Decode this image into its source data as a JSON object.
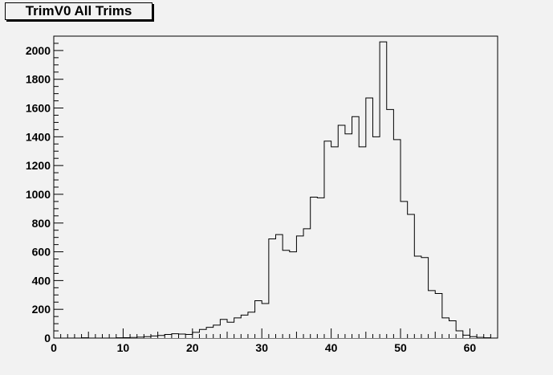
{
  "title": "TrimV0 All Trims",
  "chart_data": {
    "type": "bar",
    "title": "TrimV0 All Trims",
    "xlabel": "",
    "ylabel": "",
    "xlim": [
      0,
      64
    ],
    "ylim": [
      0,
      2100
    ],
    "x_ticks": [
      0,
      10,
      20,
      30,
      40,
      50,
      60
    ],
    "y_ticks": [
      0,
      200,
      400,
      600,
      800,
      1000,
      1200,
      1400,
      1600,
      1800,
      2000
    ],
    "bin_width": 1,
    "bins_start": [
      0,
      1,
      2,
      3,
      4,
      5,
      6,
      7,
      8,
      9,
      10,
      11,
      12,
      13,
      14,
      15,
      16,
      17,
      18,
      19,
      20,
      21,
      22,
      23,
      24,
      25,
      26,
      27,
      28,
      29,
      30,
      31,
      32,
      33,
      34,
      35,
      36,
      37,
      38,
      39,
      40,
      41,
      42,
      43,
      44,
      45,
      46,
      47,
      48,
      49,
      50,
      51,
      52,
      53,
      54,
      55,
      56,
      57,
      58,
      59,
      60,
      61,
      62,
      63
    ],
    "values": [
      0,
      0,
      0,
      0,
      2,
      0,
      0,
      0,
      0,
      2,
      3,
      4,
      6,
      10,
      15,
      18,
      25,
      30,
      28,
      25,
      40,
      60,
      75,
      90,
      130,
      110,
      140,
      160,
      180,
      260,
      240,
      690,
      720,
      610,
      600,
      710,
      760,
      980,
      975,
      1370,
      1330,
      1480,
      1420,
      1540,
      1330,
      1670,
      1400,
      2060,
      1590,
      1380,
      950,
      860,
      570,
      560,
      330,
      310,
      140,
      120,
      50,
      20,
      10,
      5,
      2,
      0
    ],
    "grid": false,
    "legend": "none"
  }
}
